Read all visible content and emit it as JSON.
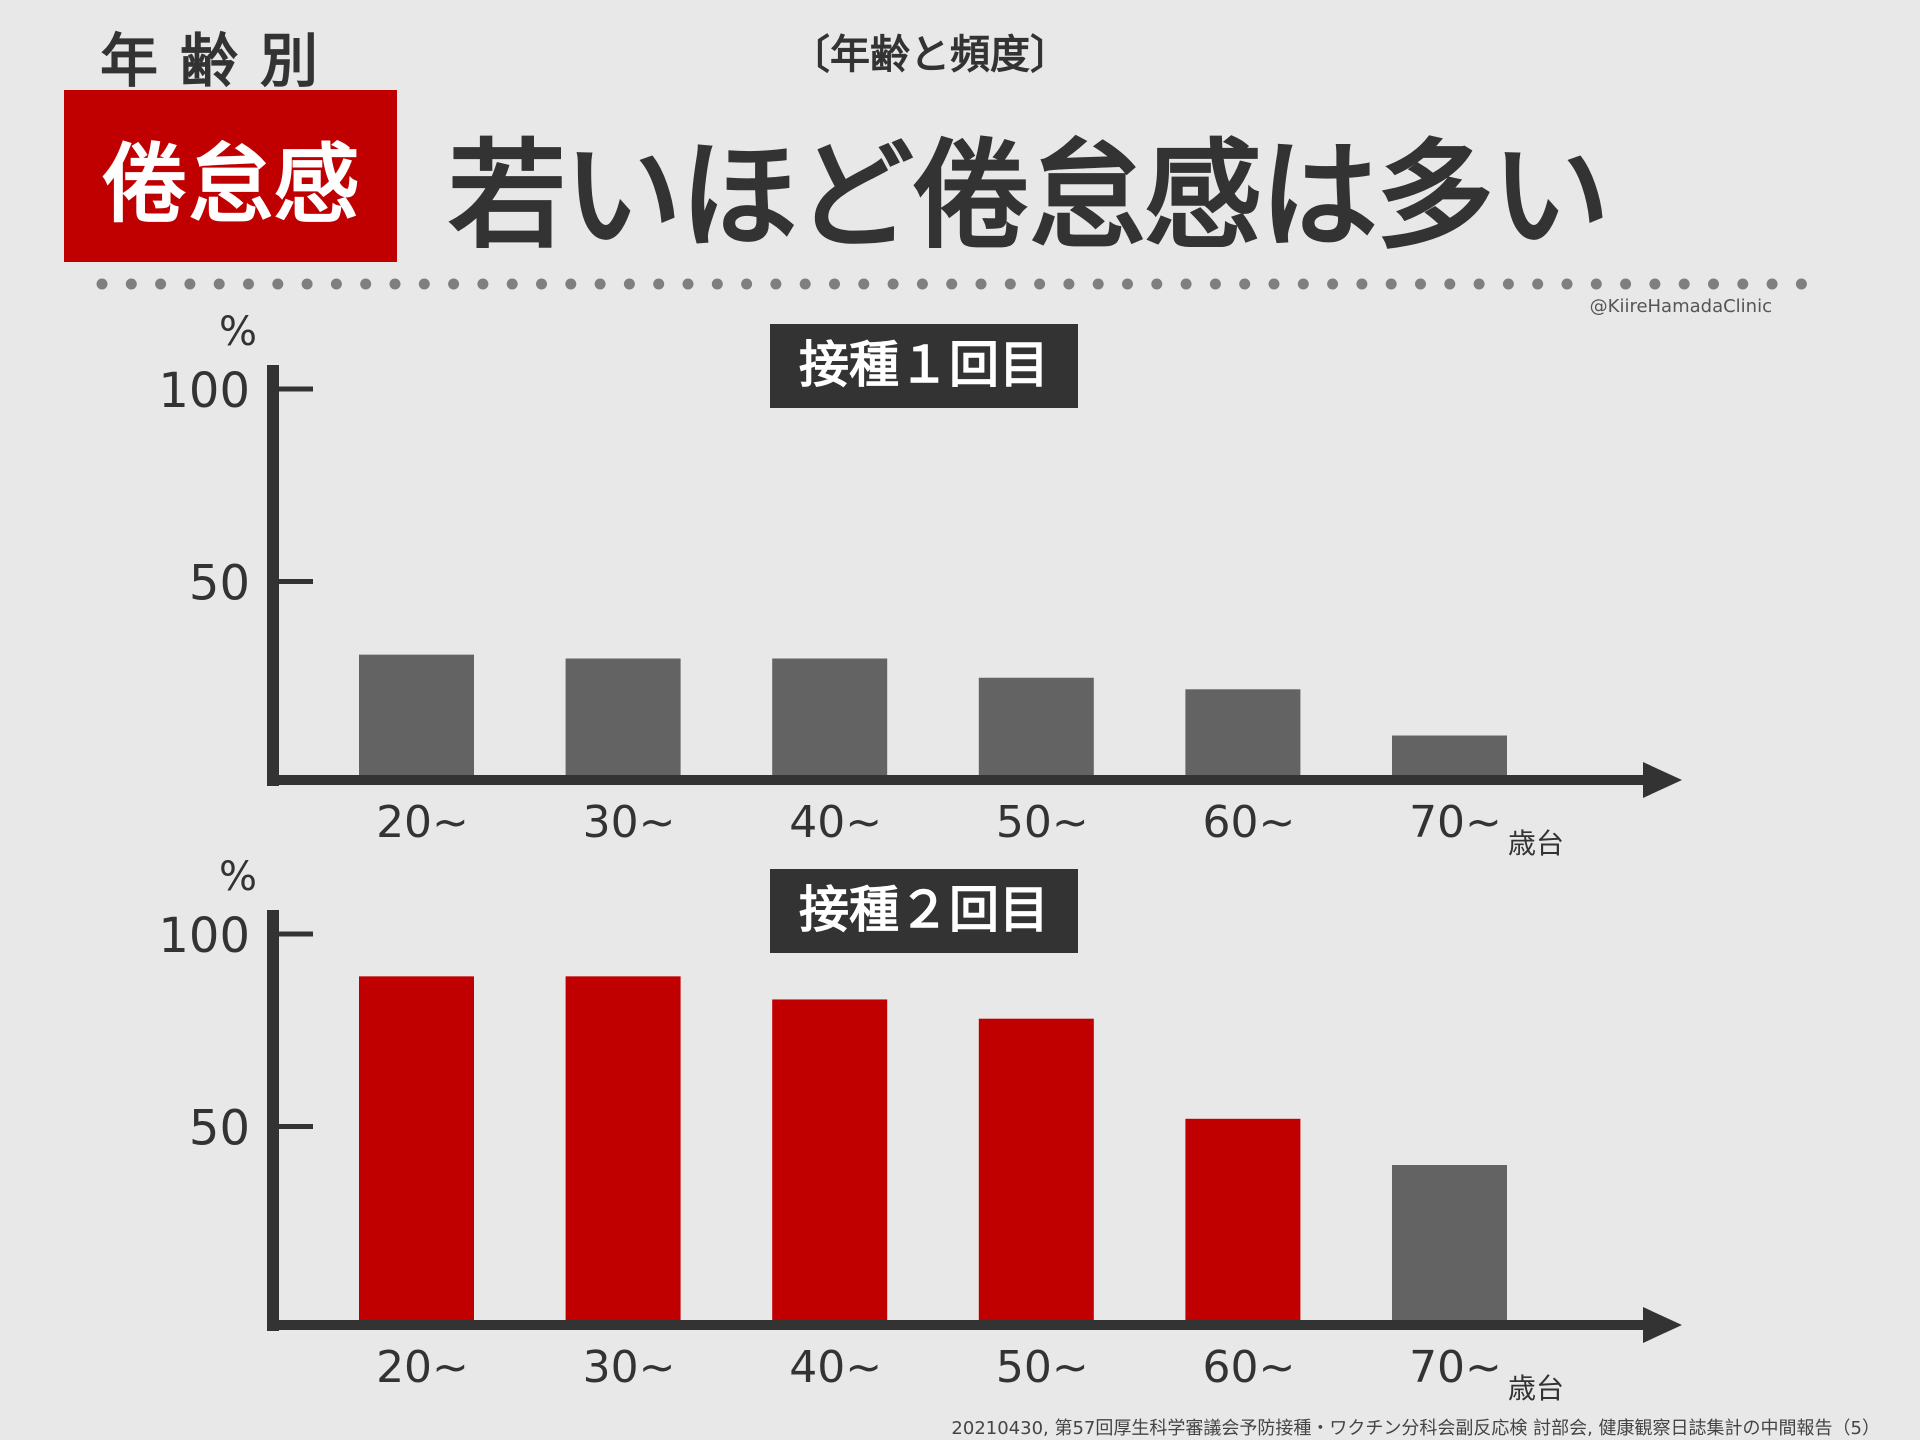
{
  "header": {
    "kicker": "年齢別",
    "subtitle": "〔年齢と頻度〕",
    "badge": "倦怠感",
    "headline": "若いほど倦怠感は多い"
  },
  "credit": "@KiireHamadaClinic",
  "source": "20210430, 第57回厚生科学審議会予防接種・ワクチン分科会副反応検 討部会, 健康観察日誌集計の中間報告（5）",
  "colors": {
    "background": "#e8e8e8",
    "accent_red": "#c00000",
    "neutral_bar": "#636363",
    "axis": "#333333",
    "title_box": "#333333"
  },
  "chart_data": [
    {
      "type": "bar",
      "title": "接種１回目",
      "ylabel": "%",
      "xunit": "歳台",
      "yticks": [
        "100",
        "50"
      ],
      "ylim": [
        0,
        100
      ],
      "categories": [
        "20~",
        "30~",
        "40~",
        "50~",
        "60~",
        "70~"
      ],
      "values": [
        31,
        30,
        30,
        25,
        22,
        10
      ],
      "bar_colors": [
        "#636363",
        "#636363",
        "#636363",
        "#636363",
        "#636363",
        "#636363"
      ]
    },
    {
      "type": "bar",
      "title": "接種２回目",
      "ylabel": "%",
      "xunit": "歳台",
      "yticks": [
        "100",
        "50"
      ],
      "ylim": [
        0,
        100
      ],
      "categories": [
        "20~",
        "30~",
        "40~",
        "50~",
        "60~",
        "70~"
      ],
      "values": [
        89,
        89,
        83,
        78,
        52,
        40
      ],
      "bar_colors": [
        "#c00000",
        "#c00000",
        "#c00000",
        "#c00000",
        "#c00000",
        "#636363"
      ]
    }
  ]
}
